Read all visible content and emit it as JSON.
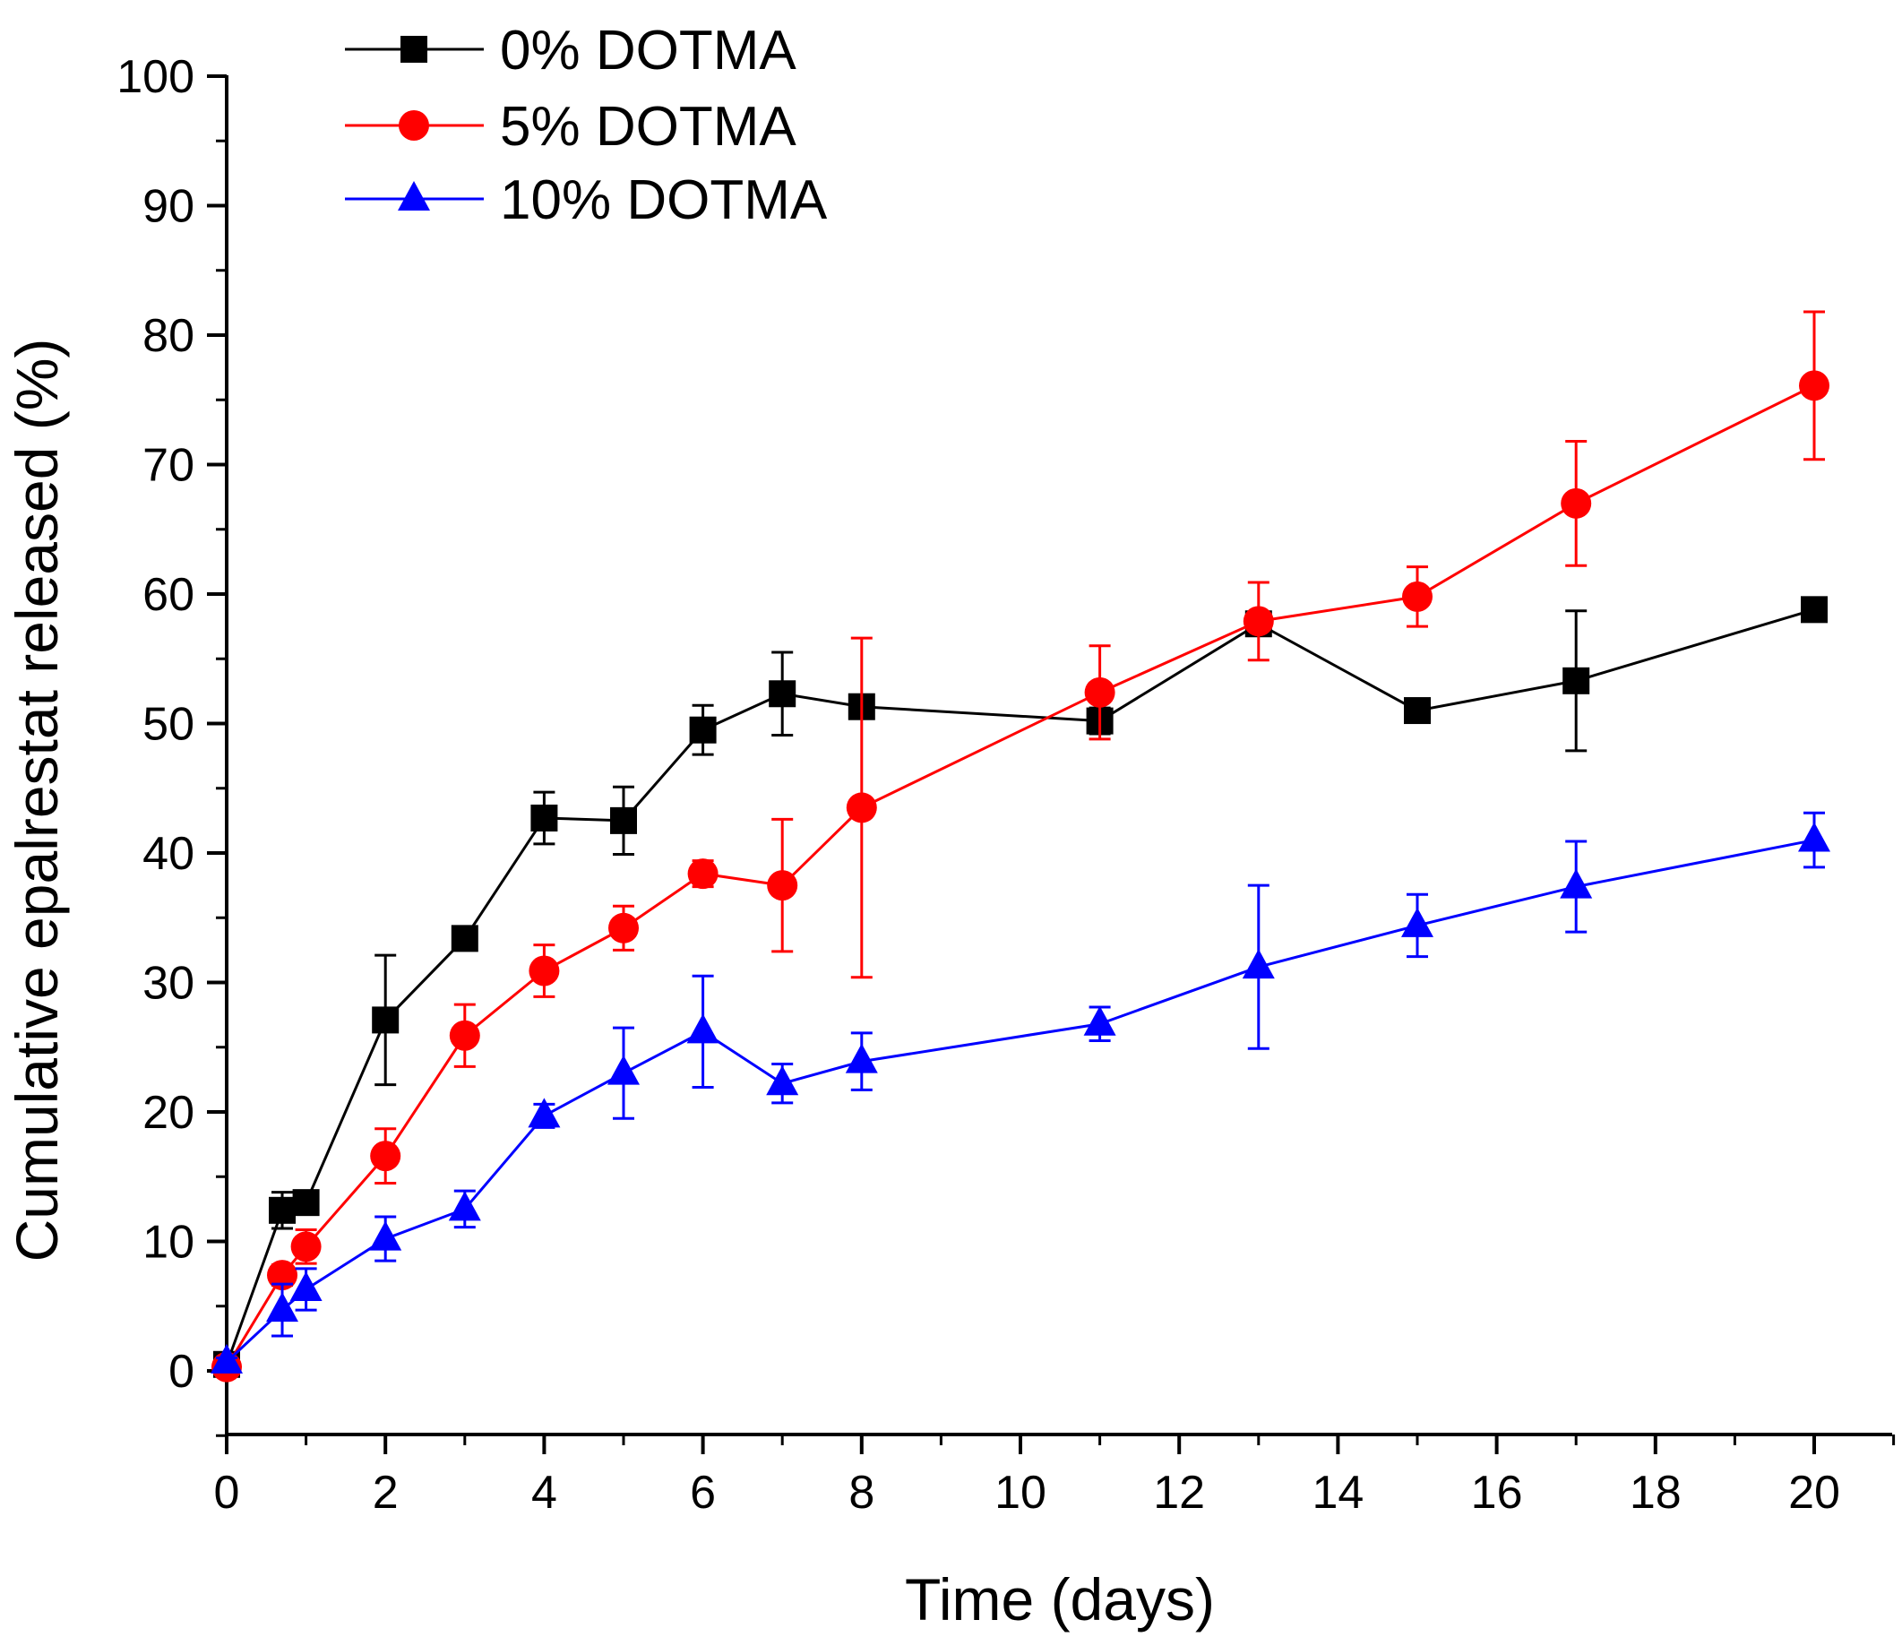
{
  "chart_data": {
    "type": "line",
    "title": "",
    "xlabel": "Time (days)",
    "ylabel": "Cumulative epalrestat released (%)",
    "xlim": [
      0,
      21
    ],
    "ylim": [
      -5,
      100
    ],
    "xticks": [
      0,
      2,
      4,
      6,
      8,
      10,
      12,
      14,
      16,
      18,
      20
    ],
    "yticks": [
      0,
      10,
      20,
      30,
      40,
      50,
      60,
      70,
      80,
      90,
      100
    ],
    "xtick_labels": [
      "0",
      "2",
      "4",
      "6",
      "8",
      "10",
      "12",
      "14",
      "16",
      "18",
      "20"
    ],
    "ytick_labels": [
      "0",
      "10",
      "20",
      "30",
      "40",
      "50",
      "60",
      "70",
      "80",
      "90",
      "100"
    ],
    "legend_position": "top-left",
    "series": [
      {
        "name": "0% DOTMA",
        "color": "#000000",
        "marker": "square",
        "x": [
          0,
          0.7,
          1,
          2,
          3,
          4,
          5,
          6,
          7,
          8,
          11,
          13,
          15,
          17,
          20
        ],
        "y": [
          0.5,
          12.4,
          13.0,
          27.1,
          33.4,
          42.7,
          42.5,
          49.5,
          52.3,
          51.3,
          50.2,
          57.7,
          51.0,
          53.3,
          58.8
        ],
        "err": [
          0.3,
          1.4,
          0.7,
          5.0,
          0.5,
          2.0,
          2.6,
          1.9,
          3.2,
          0,
          1.0,
          0.7,
          0.4,
          5.4,
          0.5
        ]
      },
      {
        "name": "5% DOTMA",
        "color": "#ff0000",
        "marker": "circle",
        "x": [
          0,
          0.7,
          1,
          2,
          3,
          4,
          5,
          6,
          7,
          8,
          11,
          13,
          15,
          17,
          20
        ],
        "y": [
          0.3,
          7.4,
          9.6,
          16.6,
          25.9,
          30.9,
          34.2,
          38.4,
          37.5,
          43.5,
          52.4,
          57.9,
          59.8,
          67.0,
          76.1
        ],
        "err": [
          0.2,
          0.8,
          1.3,
          2.1,
          2.4,
          2.0,
          1.7,
          1.0,
          5.1,
          13.1,
          3.6,
          3.0,
          2.3,
          4.8,
          5.7
        ]
      },
      {
        "name": "10% DOTMA",
        "color": "#0000ff",
        "marker": "triangle",
        "x": [
          0,
          0.7,
          1,
          2,
          3,
          4,
          5,
          6,
          7,
          8,
          11,
          13,
          15,
          17,
          20
        ],
        "y": [
          0.7,
          4.7,
          6.3,
          10.2,
          12.5,
          19.7,
          23.0,
          26.2,
          22.2,
          23.9,
          26.8,
          31.2,
          34.4,
          37.4,
          41.0
        ],
        "err": [
          0.3,
          2.0,
          1.6,
          1.7,
          1.4,
          0.9,
          3.5,
          4.3,
          1.5,
          2.2,
          1.3,
          6.3,
          2.4,
          3.5,
          2.1
        ]
      }
    ]
  }
}
